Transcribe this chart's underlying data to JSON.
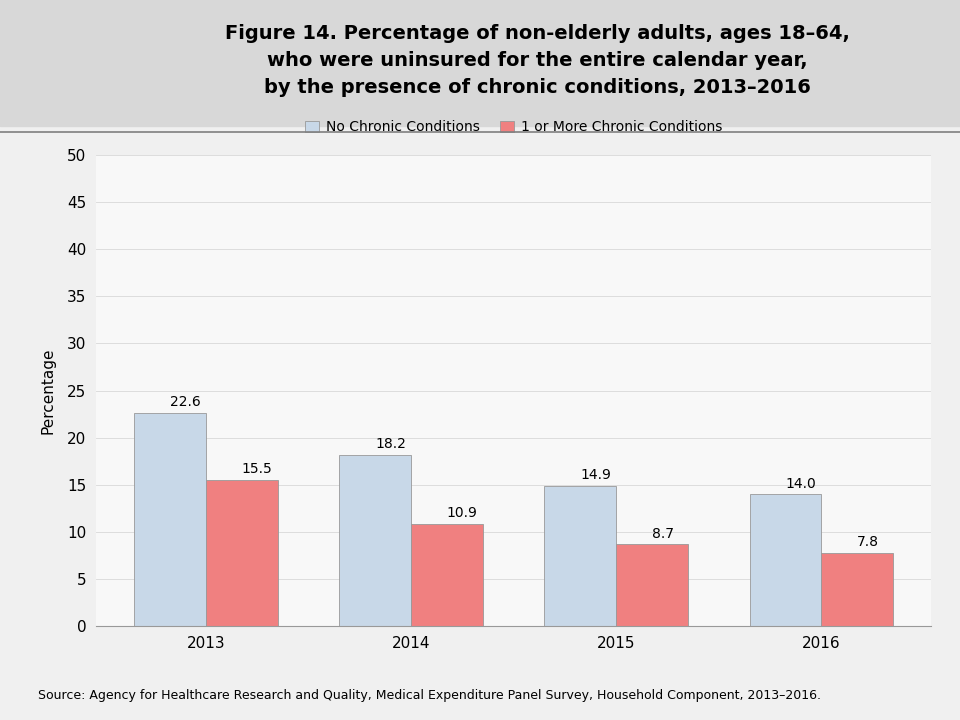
{
  "title_line1": "Figure 14. Percentage of non-elderly adults, ages 18–64,",
  "title_line2": "who were uninsured for the entire calendar year,",
  "title_line3": "by the presence of chronic conditions, 2013–2016",
  "years": [
    "2013",
    "2014",
    "2015",
    "2016"
  ],
  "no_chronic": [
    22.6,
    18.2,
    14.9,
    14.0
  ],
  "one_or_more_chronic": [
    15.5,
    10.9,
    8.7,
    7.8
  ],
  "no_chronic_color": "#c8d8e8",
  "one_or_more_chronic_color": "#f08080",
  "no_chronic_label": "No Chronic Conditions",
  "one_or_more_label": "1 or More Chronic Conditions",
  "ylabel": "Percentage",
  "ylim": [
    0,
    50
  ],
  "yticks": [
    0,
    5,
    10,
    15,
    20,
    25,
    30,
    35,
    40,
    45,
    50
  ],
  "bar_width": 0.35,
  "header_bg_color": "#d8d8d8",
  "body_bg_color": "#f0f0f0",
  "separator_color": "#808080",
  "source_text": "Source: Agency for Healthcare Research and Quality, Medical Expenditure Panel Survey, Household Component, 2013–2016.",
  "title_fontsize": 14,
  "axis_fontsize": 11,
  "label_fontsize": 10,
  "tick_fontsize": 11,
  "annotation_fontsize": 10
}
